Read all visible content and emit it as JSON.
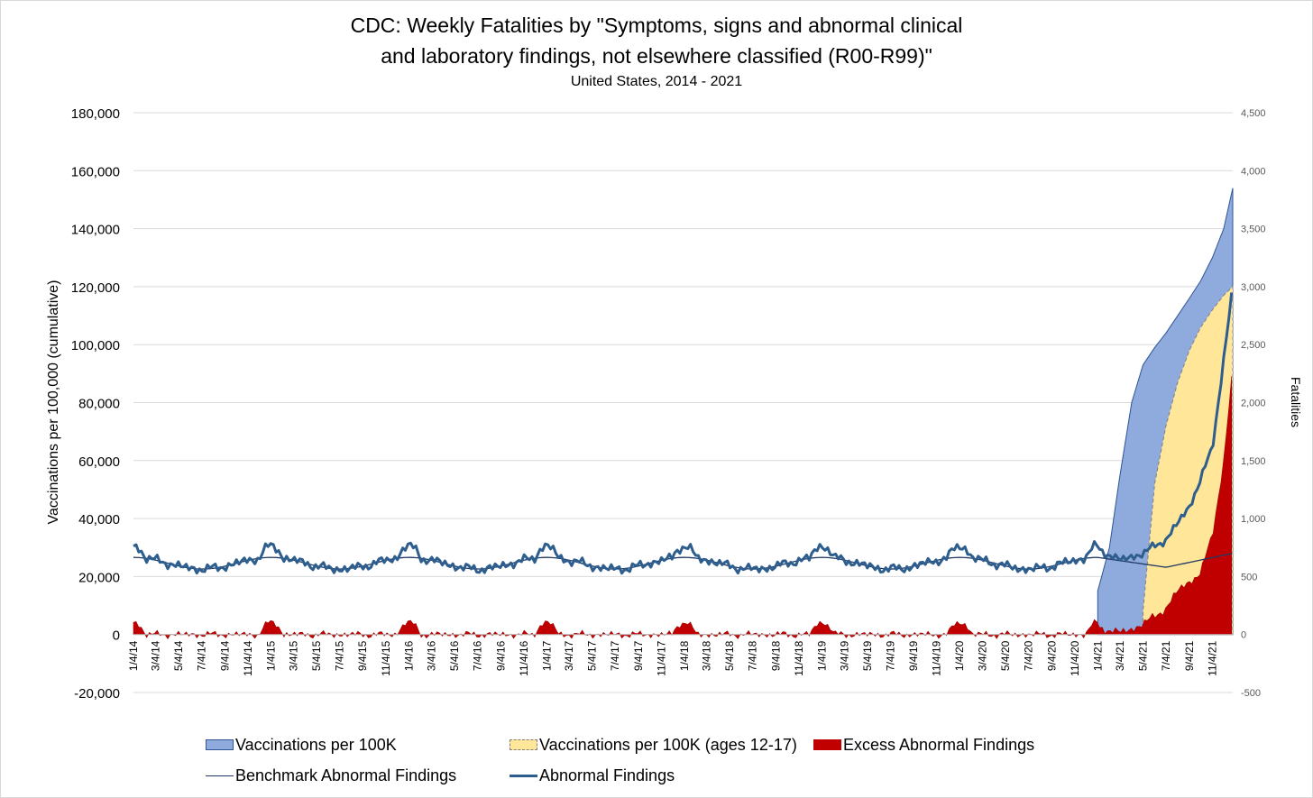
{
  "chart_data": {
    "type": "area",
    "title_line1": "CDC: Weekly Fatalities by \"Symptoms, signs and abnormal clinical",
    "title_line2": "and laboratory findings, not elsewhere classified (R00-R99)\"",
    "subtitle": "United States, 2014 - 2021",
    "ylabel_left": "Vaccinations per 100,000 (cumulative)",
    "ylabel_right": "Fatalities",
    "ylim_left": [
      -20000,
      180000
    ],
    "ylim_right": [
      -500,
      4500
    ],
    "yticks_left": [
      "180,000",
      "160,000",
      "140,000",
      "120,000",
      "100,000",
      "80,000",
      "60,000",
      "40,000",
      "20,000",
      "0",
      "-20,000"
    ],
    "yticks_right": [
      "4,500",
      "4,000",
      "3,500",
      "3,000",
      "2,500",
      "2,000",
      "1,500",
      "1,000",
      "500",
      "0",
      "-500"
    ],
    "x_ticks": [
      "1/4/14",
      "3/4/14",
      "5/4/14",
      "7/4/14",
      "9/4/14",
      "11/4/14",
      "1/4/15",
      "3/4/15",
      "5/4/15",
      "7/4/15",
      "9/4/15",
      "11/4/15",
      "1/4/16",
      "3/4/16",
      "5/4/16",
      "7/4/16",
      "9/4/16",
      "11/4/16",
      "1/4/17",
      "3/4/17",
      "5/4/17",
      "7/4/17",
      "9/4/17",
      "11/4/17",
      "1/4/18",
      "3/4/18",
      "5/4/18",
      "7/4/18",
      "9/4/18",
      "11/4/18",
      "1/4/19",
      "3/4/19",
      "5/4/19",
      "7/4/19",
      "9/4/19",
      "11/4/19",
      "1/4/20",
      "3/4/20",
      "5/4/20",
      "7/4/20",
      "9/4/20",
      "11/4/20",
      "1/4/21",
      "3/4/21",
      "5/4/21",
      "7/4/21",
      "9/4/21",
      "11/4/21"
    ],
    "grid": true,
    "legend_position": "bottom",
    "series": [
      {
        "name": "Vaccinations per 100K",
        "axis": "left",
        "color": "#8faadc",
        "x": [
          "1/4/21",
          "2/4/21",
          "3/4/21",
          "4/4/21",
          "5/4/21",
          "6/4/21",
          "7/4/21",
          "8/4/21",
          "9/4/21",
          "10/4/21",
          "11/4/21",
          "12/4/21",
          "12/28/21"
        ],
        "values": [
          15000,
          30000,
          55000,
          80000,
          93000,
          99000,
          104000,
          110000,
          116000,
          122000,
          130000,
          140000,
          154000
        ]
      },
      {
        "name": "Vaccinations per 100K (ages 12-17)",
        "axis": "left",
        "color": "#ffe699",
        "x": [
          "5/4/21",
          "6/4/21",
          "7/4/21",
          "8/4/21",
          "9/4/21",
          "10/4/21",
          "11/4/21",
          "12/4/21",
          "12/28/21"
        ],
        "values": [
          8000,
          52000,
          72000,
          87000,
          98000,
          106000,
          112000,
          117000,
          120000
        ]
      },
      {
        "name": "Excess Abnormal Findings",
        "axis": "right",
        "color": "#c00000",
        "x": [
          "1/4/14",
          "1/4/15",
          "1/4/16",
          "1/4/17",
          "1/4/18",
          "1/4/19",
          "1/4/20",
          "1/4/21",
          "2/4/21",
          "3/4/21",
          "4/4/21",
          "5/4/21",
          "6/4/21",
          "7/4/21",
          "8/4/21",
          "9/4/21",
          "10/4/21",
          "11/4/21",
          "12/4/21",
          "12/28/21"
        ],
        "values": [
          -20,
          130,
          120,
          150,
          100,
          40,
          110,
          60,
          40,
          20,
          40,
          100,
          150,
          230,
          380,
          450,
          540,
          850,
          1500,
          2300
        ]
      },
      {
        "name": "Benchmark Abnormal Findings",
        "axis": "right",
        "color": "#203864",
        "x": [
          "1/4/14",
          "7/4/14",
          "1/4/15",
          "7/4/15",
          "1/4/16",
          "7/4/16",
          "1/4/17",
          "7/4/17",
          "1/4/18",
          "7/4/18",
          "1/4/19",
          "7/4/19",
          "1/4/20",
          "7/4/20",
          "1/4/21",
          "7/4/21",
          "12/28/21"
        ],
        "values": [
          665,
          560,
          665,
          565,
          665,
          565,
          665,
          565,
          665,
          565,
          665,
          565,
          665,
          565,
          665,
          580,
          700
        ]
      },
      {
        "name": "Abnormal Findings",
        "axis": "right",
        "color": "#2e5e8e",
        "x": [
          "1/4/14",
          "7/4/14",
          "1/4/15",
          "7/4/15",
          "1/4/16",
          "7/4/16",
          "1/4/17",
          "7/4/17",
          "1/4/18",
          "7/4/18",
          "1/4/19",
          "7/4/19",
          "1/4/20",
          "7/4/20",
          "1/4/21",
          "3/4/21",
          "5/4/21",
          "7/4/21",
          "9/4/21",
          "11/4/21",
          "12/28/21"
        ],
        "values": [
          670,
          560,
          800,
          570,
          780,
          580,
          800,
          580,
          770,
          570,
          730,
          580,
          770,
          560,
          740,
          640,
          700,
          820,
          1100,
          1600,
          3000
        ]
      }
    ]
  }
}
